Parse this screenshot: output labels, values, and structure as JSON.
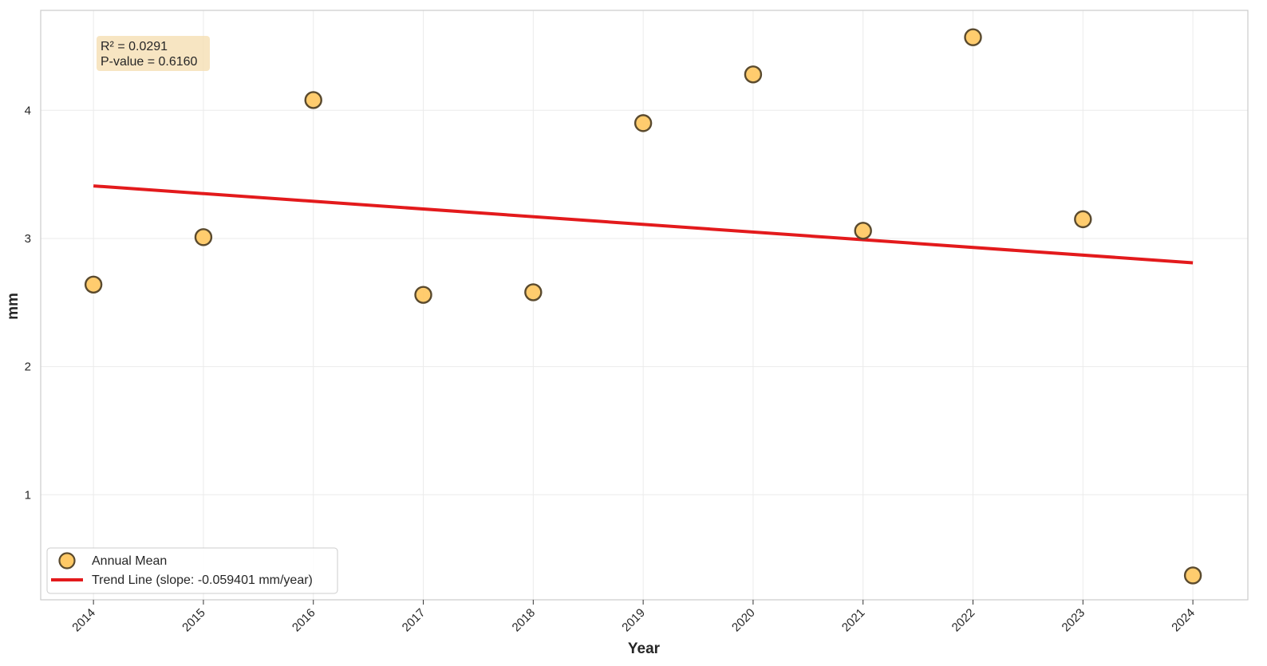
{
  "chart_data": {
    "type": "scatter",
    "xlabel": "Year",
    "ylabel": "mm",
    "xlim": [
      2013.52,
      2024.5
    ],
    "ylim": [
      0.18,
      4.78
    ],
    "x_ticks": [
      "2014",
      "2015",
      "2016",
      "2017",
      "2018",
      "2019",
      "2020",
      "2021",
      "2022",
      "2023",
      "2024"
    ],
    "y_ticks": [
      "1",
      "2",
      "3",
      "4"
    ],
    "grid": true,
    "legend_position": "bottom-left",
    "series": [
      {
        "name": "Annual Mean",
        "kind": "scatter",
        "color": "#ffc966",
        "edge_color": "#5a4a2e",
        "x": [
          2014,
          2015,
          2016,
          2017,
          2018,
          2019,
          2020,
          2021,
          2022,
          2023,
          2024
        ],
        "y": [
          2.64,
          3.01,
          4.08,
          2.56,
          2.58,
          3.9,
          4.28,
          3.06,
          4.57,
          3.15,
          0.37
        ]
      },
      {
        "name": "Trend Line (slope: -0.059401 mm/year)",
        "kind": "line",
        "color": "#e31a1c",
        "x": [
          2014,
          2024
        ],
        "y": [
          3.41,
          2.81
        ]
      }
    ],
    "annotations": [
      {
        "kind": "stats-box",
        "lines": [
          "R² = 0.0291",
          "P-value = 0.6160"
        ],
        "background": "#f5deb3",
        "position": "top-left"
      }
    ]
  }
}
